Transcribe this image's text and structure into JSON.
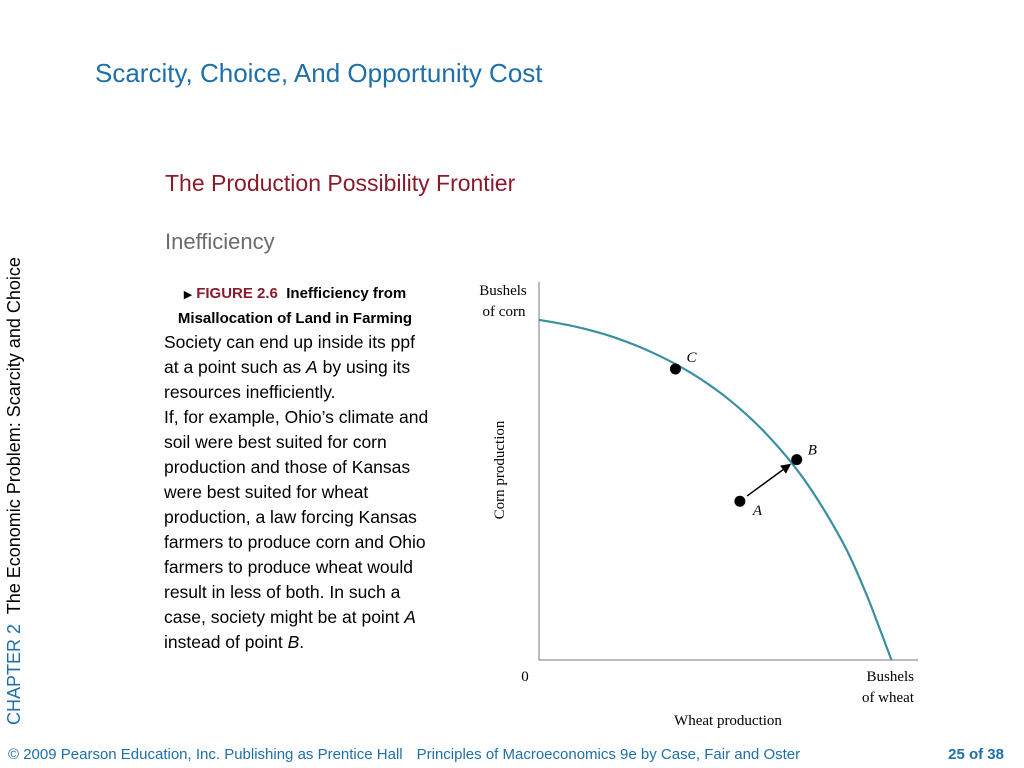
{
  "slide": {
    "title": "Scarcity, Choice, And Opportunity Cost",
    "chapter_label": "CHAPTER 2",
    "chapter_title": "The Economic Problem:  Scarcity and Choice",
    "section_title": "The Production Possibility Frontier",
    "subsection": "Inefficiency"
  },
  "figure": {
    "marker": "▶",
    "number": "FIGURE 2.6",
    "caption_title": "Inefficiency from Misallocation of Land in Farming",
    "body": {
      "p1_a": "Society can end up inside its ppf  at a point such as ",
      "p1_em": "A",
      "p1_b": " by using its resources inefficiently.",
      "p2_a": "If, for example, Ohio’s climate and soil were best suited for corn production and those of Kansas were best suited for wheat production, a law forcing Kansas farmers to produce corn and Ohio farmers to produce wheat would result in less of both. In such a case, society might be at point ",
      "p2_em1": "A",
      "p2_b": " instead of point ",
      "p2_em2": "B",
      "p2_c": "."
    }
  },
  "chart_data": {
    "type": "line",
    "y_axis_top_label": [
      "Bushels",
      "of corn"
    ],
    "y_axis_title": "Corn production",
    "x_axis_end_label": [
      "Bushels",
      "of wheat"
    ],
    "x_axis_title": "Wheat production",
    "origin_label": "0",
    "curve_color": "#3a8fa0",
    "xlim": [
      0,
      1
    ],
    "ylim": [
      0,
      1
    ],
    "frontier": [
      {
        "x": 0.0,
        "y": 0.9
      },
      {
        "x": 0.1,
        "y": 0.881
      },
      {
        "x": 0.2,
        "y": 0.853
      },
      {
        "x": 0.3,
        "y": 0.813
      },
      {
        "x": 0.4,
        "y": 0.76
      },
      {
        "x": 0.5,
        "y": 0.69
      },
      {
        "x": 0.6,
        "y": 0.598
      },
      {
        "x": 0.7,
        "y": 0.477
      },
      {
        "x": 0.8,
        "y": 0.314
      },
      {
        "x": 0.86,
        "y": 0.183
      },
      {
        "x": 0.9,
        "y": 0.08
      },
      {
        "x": 0.93,
        "y": 0.0
      }
    ],
    "points": [
      {
        "name": "C",
        "x": 0.36,
        "y": 0.77
      },
      {
        "name": "B",
        "x": 0.68,
        "y": 0.53
      },
      {
        "name": "A",
        "x": 0.53,
        "y": 0.42
      }
    ],
    "arrow": {
      "from": "A",
      "to": "B"
    }
  },
  "footer": {
    "copyright": "© 2009 Pearson Education, Inc. Publishing as Prentice Hall",
    "book": "Principles of Macroeconomics 9e by Case, Fair and Oster",
    "page": "25 of 38"
  }
}
